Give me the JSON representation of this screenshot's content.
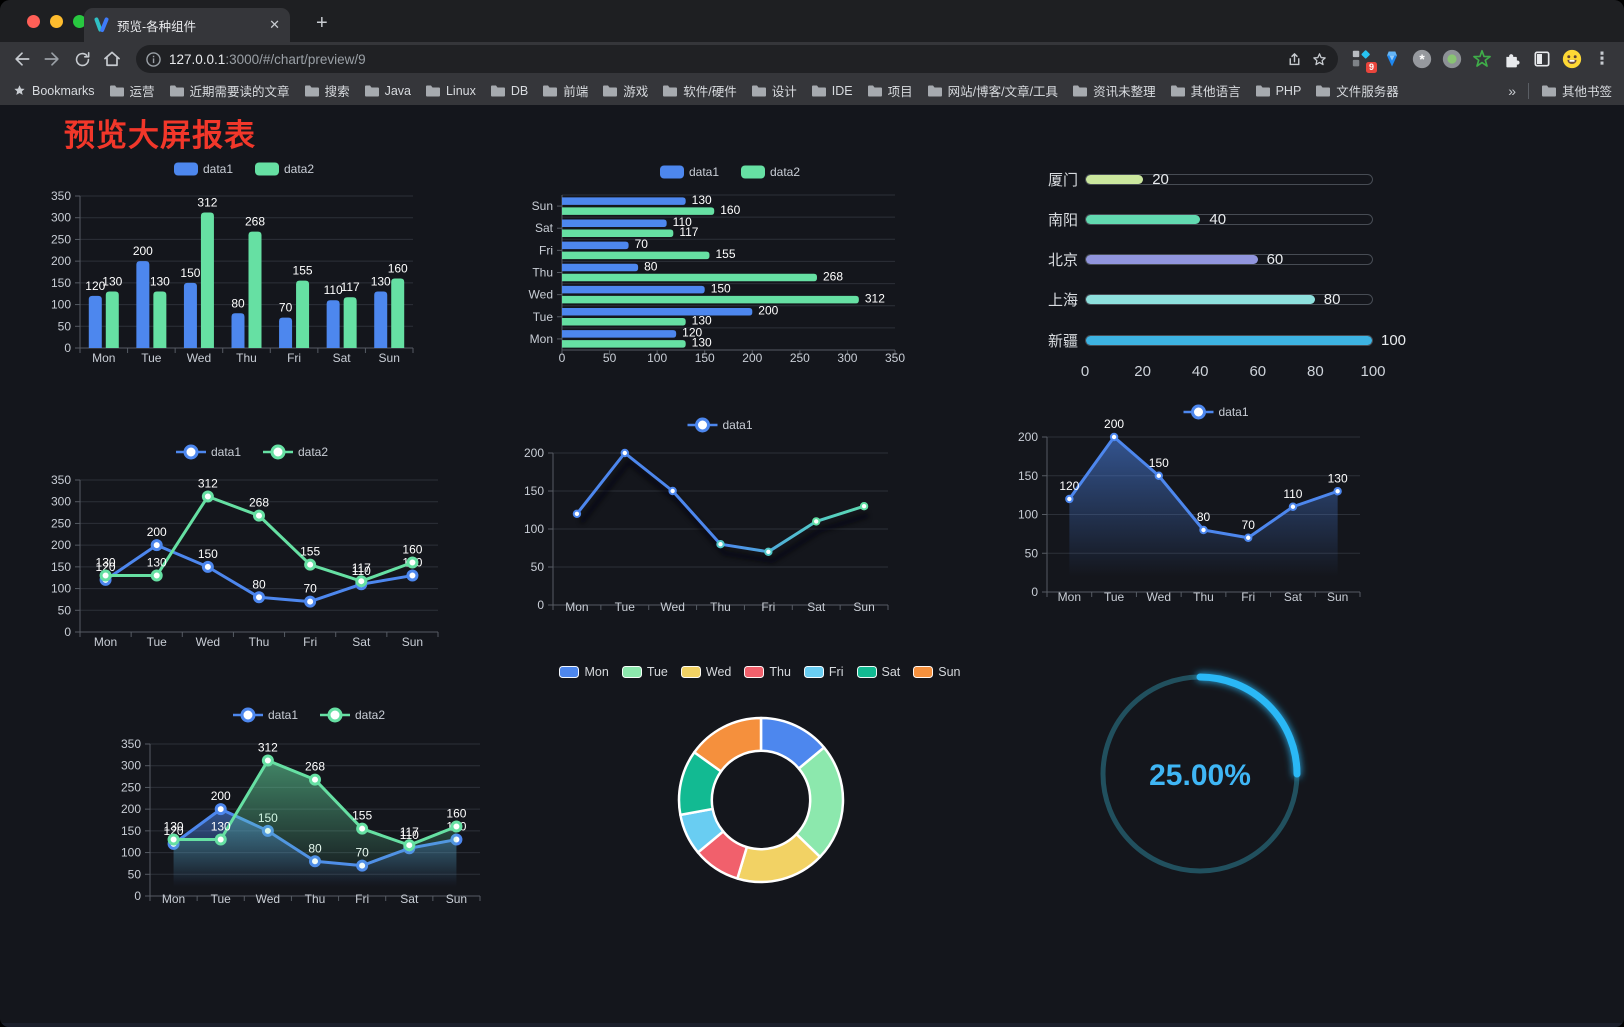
{
  "browser": {
    "tab_title": "预览-各种组件",
    "close_glyph": "✕",
    "new_tab_glyph": "+",
    "url_host": "127.0.0.1",
    "url_rest": ":3000/#/chart/preview/9",
    "extension_badge": "9",
    "menu_glyph": "⋮",
    "bookmarks_root": "Bookmarks",
    "bookmarks": [
      "运营",
      "近期需要读的文章",
      "搜索",
      "Java",
      "Linux",
      "DB",
      "前端",
      "游戏",
      "软件/硬件",
      "设计",
      "IDE",
      "项目",
      "网站/博客/文章/工具",
      "资讯未整理",
      "其他语言",
      "PHP",
      "文件服务器"
    ],
    "bookmarks_overflow": "»",
    "other_bookmarks": "其他书签"
  },
  "page": {
    "title": "预览大屏报表",
    "title_color": "#f2372a",
    "background": "#14161c"
  },
  "chart_data": [
    {
      "id": "bar-grouped",
      "type": "bar",
      "legend_position": "top",
      "value_labels": true,
      "categories": [
        "Mon",
        "Tue",
        "Wed",
        "Thu",
        "Fri",
        "Sat",
        "Sun"
      ],
      "series": [
        {
          "name": "data1",
          "color": "#4d87ee",
          "values": [
            120,
            200,
            150,
            80,
            70,
            110,
            130
          ]
        },
        {
          "name": "data2",
          "color": "#66e0a3",
          "values": [
            130,
            130,
            312,
            268,
            155,
            117,
            160
          ]
        }
      ],
      "ylim": [
        0,
        350
      ],
      "yticks": [
        0,
        50,
        100,
        150,
        200,
        250,
        300,
        350
      ],
      "grid": true
    },
    {
      "id": "bar-horizontal",
      "type": "bar",
      "orientation": "horizontal",
      "category_display": "reversed",
      "value_labels": true,
      "categories": [
        "Mon",
        "Tue",
        "Wed",
        "Thu",
        "Fri",
        "Sat",
        "Sun"
      ],
      "series": [
        {
          "name": "data1",
          "color": "#4d87ee",
          "values": [
            120,
            200,
            150,
            80,
            70,
            110,
            130
          ]
        },
        {
          "name": "data2",
          "color": "#66e0a3",
          "values": [
            130,
            130,
            312,
            268,
            155,
            117,
            160
          ]
        }
      ],
      "xlim": [
        0,
        350
      ],
      "xticks": [
        0,
        50,
        100,
        150,
        200,
        250,
        300,
        350
      ],
      "grid": true
    },
    {
      "id": "progress-bars",
      "type": "bar",
      "subtype": "progress",
      "max": 100,
      "rows": [
        {
          "label": "厦门",
          "value": 20,
          "color": "#cbe79e"
        },
        {
          "label": "南阳",
          "value": 40,
          "color": "#62d9b0"
        },
        {
          "label": "北京",
          "value": 60,
          "color": "#9195dd"
        },
        {
          "label": "上海",
          "value": 80,
          "color": "#8ee0dd"
        },
        {
          "label": "新疆",
          "value": 100,
          "color": "#3db3e2"
        }
      ],
      "xticks": [
        0,
        20,
        40,
        60,
        80,
        100
      ]
    },
    {
      "id": "line-two-series",
      "type": "line",
      "value_labels": true,
      "categories": [
        "Mon",
        "Tue",
        "Wed",
        "Thu",
        "Fri",
        "Sat",
        "Sun"
      ],
      "series": [
        {
          "name": "data1",
          "color": "#4d87ee",
          "values": [
            120,
            200,
            150,
            80,
            70,
            110,
            130
          ]
        },
        {
          "name": "data2",
          "color": "#66e0a3",
          "values": [
            130,
            130,
            312,
            268,
            155,
            117,
            160
          ]
        }
      ],
      "ylim": [
        0,
        350
      ],
      "yticks": [
        0,
        50,
        100,
        150,
        200,
        250,
        300,
        350
      ],
      "grid": true
    },
    {
      "id": "line-gradient",
      "type": "line",
      "value_labels": false,
      "line_shadow": true,
      "categories": [
        "Mon",
        "Tue",
        "Wed",
        "Thu",
        "Fri",
        "Sat",
        "Sun"
      ],
      "series": [
        {
          "name": "data1",
          "color": "#4d87ee",
          "gradient": [
            "#4d87ee",
            "#4d87ee",
            "#52c9c9",
            "#63dfa4"
          ],
          "values": [
            120,
            200,
            150,
            80,
            70,
            110,
            130
          ]
        }
      ],
      "ylim": [
        0,
        200
      ],
      "yticks": [
        0,
        50,
        100,
        150,
        200
      ],
      "grid": true
    },
    {
      "id": "area-single",
      "type": "area",
      "value_labels": true,
      "categories": [
        "Mon",
        "Tue",
        "Wed",
        "Thu",
        "Fri",
        "Sat",
        "Sun"
      ],
      "series": [
        {
          "name": "data1",
          "color": "#4d87ee",
          "area": true,
          "values": [
            120,
            200,
            150,
            80,
            70,
            110,
            130
          ]
        }
      ],
      "ylim": [
        0,
        200
      ],
      "yticks": [
        0,
        50,
        100,
        150,
        200
      ],
      "grid": true
    },
    {
      "id": "area-two-series",
      "type": "area",
      "value_labels": true,
      "categories": [
        "Mon",
        "Tue",
        "Wed",
        "Thu",
        "Fri",
        "Sat",
        "Sun"
      ],
      "series": [
        {
          "name": "data1",
          "color": "#4d87ee",
          "area": true,
          "values": [
            120,
            200,
            150,
            80,
            70,
            110,
            130
          ]
        },
        {
          "name": "data2",
          "color": "#66e0a3",
          "area": true,
          "values": [
            130,
            130,
            312,
            268,
            155,
            117,
            160
          ]
        }
      ],
      "ylim": [
        0,
        350
      ],
      "yticks": [
        0,
        50,
        100,
        150,
        200,
        250,
        300,
        350
      ],
      "grid": true
    },
    {
      "id": "donut",
      "type": "pie",
      "inner_radius_ratio": 0.6,
      "border_color": "#ffffff",
      "legend_position": "top",
      "slices": [
        {
          "label": "Mon",
          "value": 120,
          "color": "#4d87ee"
        },
        {
          "label": "Tue",
          "value": 200,
          "color": "#8ce8ad"
        },
        {
          "label": "Wed",
          "value": 150,
          "color": "#f2d264"
        },
        {
          "label": "Thu",
          "value": 80,
          "color": "#f1606c"
        },
        {
          "label": "Fri",
          "value": 70,
          "color": "#69cdf2"
        },
        {
          "label": "Sat",
          "value": 110,
          "color": "#12ba92"
        },
        {
          "label": "Sun",
          "value": 130,
          "color": "#f5903d"
        }
      ]
    },
    {
      "id": "gauge",
      "type": "gauge",
      "value": 25,
      "display": "25.00%",
      "progress_color": "#29b8f6",
      "track_color": "#21505e",
      "text_color": "#3fb6f5"
    }
  ]
}
